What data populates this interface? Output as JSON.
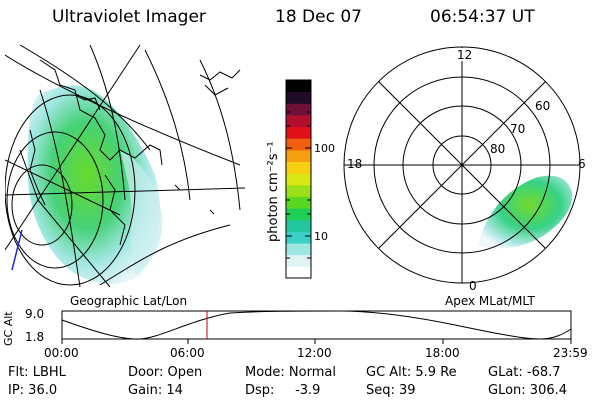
{
  "header": {
    "title": "Ultraviolet Imager",
    "date": "18 Dec 07",
    "time": "06:54:37 UT"
  },
  "geo_panel": {
    "label": "Geographic Lat/Lon"
  },
  "apex_panel": {
    "label": "Apex MLat/MLT",
    "mlt_labels": {
      "top": "12",
      "left": "18",
      "right": "6",
      "bottom": "0"
    },
    "lat_labels": [
      "60",
      "70",
      "80"
    ]
  },
  "colorbar": {
    "unit_label": "photon cm⁻²s⁻¹",
    "tick_labels": [
      "100",
      "10"
    ],
    "colors": [
      "#ffffff",
      "#e0f4f4",
      "#9ee6e2",
      "#3ccfc8",
      "#22c7a0",
      "#1fcf55",
      "#5ad820",
      "#9be018",
      "#d9e812",
      "#f5d010",
      "#f5a010",
      "#f06010",
      "#e01018",
      "#b0102c",
      "#70103a",
      "#200c28",
      "#000000"
    ]
  },
  "timeline": {
    "ylabel": "GC Alt",
    "y_ticks": [
      "9.0",
      "1.8"
    ],
    "x_ticks": [
      "00:00",
      "06:00",
      "12:00",
      "18:00",
      "23:59"
    ],
    "marker_color": "#cc0000"
  },
  "info": {
    "filter": "Flt: LBHL",
    "ip": "IP: 36.0",
    "door": "Door: Open",
    "gain": "Gain: 14",
    "mode": "Mode: Normal",
    "dsp": "Dsp:     -3.9",
    "gc_alt": "GC Alt: 5.9 Re",
    "seq": "Seq: 39",
    "glat": "GLat: -68.7",
    "glon": "GLon: 306.4"
  }
}
